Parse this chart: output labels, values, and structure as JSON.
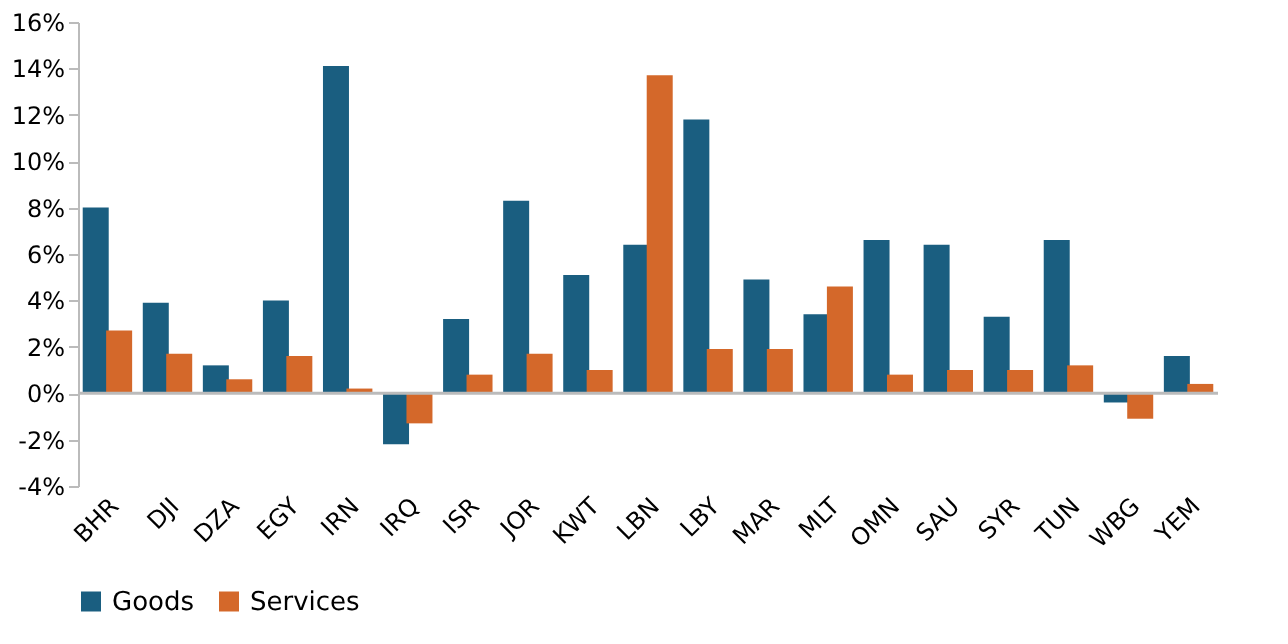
{
  "chart_data": {
    "type": "bar",
    "categories": [
      "BHR",
      "DJI",
      "DZA",
      "EGY",
      "IRN",
      "IRQ",
      "ISR",
      "JOR",
      "KWT",
      "LBN",
      "LBY",
      "MAR",
      "MLT",
      "OMN",
      "SAU",
      "SYR",
      "TUN",
      "WBG",
      "YEM"
    ],
    "series": [
      {
        "name": "Goods",
        "color": "#1a5e80",
        "values": [
          8.0,
          3.9,
          1.2,
          4.0,
          14.1,
          -2.2,
          3.2,
          8.3,
          5.1,
          6.4,
          11.8,
          4.9,
          3.4,
          6.6,
          6.4,
          3.3,
          6.6,
          -0.4,
          1.6
        ]
      },
      {
        "name": "Services",
        "color": "#d4682a",
        "values": [
          2.7,
          1.7,
          0.6,
          1.6,
          0.2,
          -1.3,
          0.8,
          1.7,
          1.0,
          13.7,
          1.9,
          1.9,
          4.6,
          0.8,
          1.0,
          1.0,
          1.2,
          -1.1,
          0.4
        ]
      }
    ],
    "ylim": [
      -4,
      16
    ],
    "yticks": [
      {
        "value": -4,
        "label": "-4%"
      },
      {
        "value": -2,
        "label": "-2%"
      },
      {
        "value": 0,
        "label": "0%"
      },
      {
        "value": 2,
        "label": "2%"
      },
      {
        "value": 4,
        "label": "4%"
      },
      {
        "value": 6,
        "label": "6%"
      },
      {
        "value": 8,
        "label": "8%"
      },
      {
        "value": 10,
        "label": "10%"
      },
      {
        "value": 12,
        "label": "12%"
      },
      {
        "value": 14,
        "label": "14%"
      },
      {
        "value": 16,
        "label": "16%"
      }
    ],
    "ref_lines": [
      {
        "axis": "y",
        "value": 0,
        "color": "#bbbbbb"
      }
    ],
    "grid": false,
    "legend": "bottom"
  }
}
